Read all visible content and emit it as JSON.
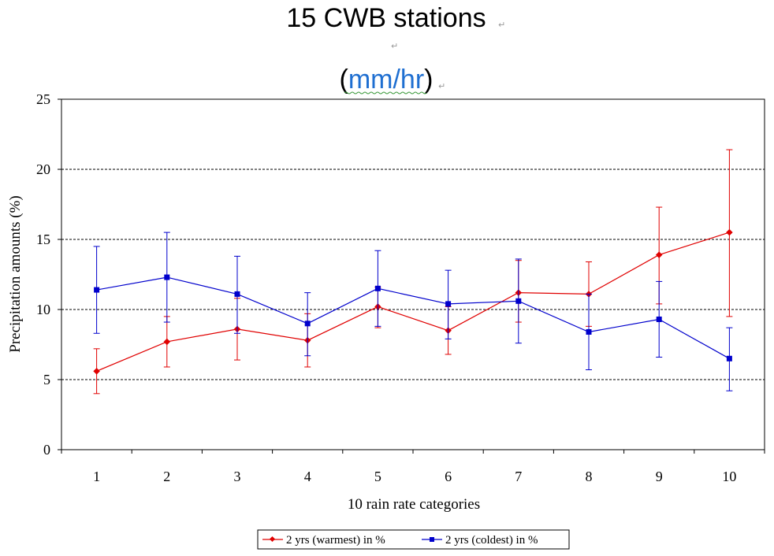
{
  "chart_data": {
    "type": "line",
    "title": "15 CWB stations",
    "subtitle_open": "(",
    "subtitle_unit": "mm/hr",
    "subtitle_close": ")",
    "xlabel": "10 rain rate categories",
    "ylabel": "Precipitation amounts (%)",
    "ylim": [
      0,
      25
    ],
    "yticks": [
      0,
      5,
      10,
      15,
      20,
      25
    ],
    "gridlines": [
      5,
      10,
      15,
      20
    ],
    "grid": "dashed horizontal",
    "legend_position": "bottom",
    "categories": [
      "1",
      "2",
      "3",
      "4",
      "5",
      "6",
      "7",
      "8",
      "9",
      "10"
    ],
    "series": [
      {
        "name": "2 yrs (warmest) in %",
        "color": "#e00000",
        "marker": "diamond",
        "values": [
          5.6,
          7.7,
          8.6,
          7.8,
          10.2,
          8.5,
          11.2,
          11.1,
          13.9,
          15.5
        ],
        "err_low": [
          4.0,
          5.9,
          6.4,
          5.9,
          8.7,
          6.8,
          9.1,
          8.8,
          10.4,
          9.5
        ],
        "err_high": [
          7.2,
          9.5,
          10.8,
          9.7,
          11.6,
          10.2,
          13.5,
          13.4,
          17.3,
          21.4
        ]
      },
      {
        "name": "2 yrs (coldest) in %",
        "color": "#0000cc",
        "marker": "square",
        "values": [
          11.4,
          12.3,
          11.1,
          9.0,
          11.5,
          10.4,
          10.6,
          8.4,
          9.3,
          6.5
        ],
        "err_low": [
          8.3,
          9.1,
          8.3,
          6.7,
          8.8,
          7.9,
          7.6,
          5.7,
          6.6,
          4.2
        ],
        "err_high": [
          14.5,
          15.5,
          13.8,
          11.2,
          14.2,
          12.8,
          13.6,
          11.1,
          12.0,
          8.7
        ]
      }
    ]
  }
}
